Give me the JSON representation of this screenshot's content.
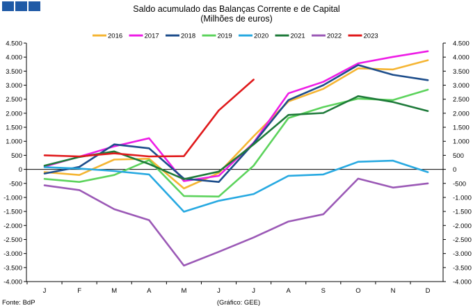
{
  "header": {
    "logo_colors": [
      "#1f5aa6",
      "#1f5aa6",
      "#1f5aa6"
    ]
  },
  "chart_data": {
    "type": "line",
    "title": "Saldo acumulado das Balanças Corrente e de Capital",
    "subtitle": "(Milhões de euros)",
    "categories": [
      "J",
      "F",
      "M",
      "A",
      "M",
      "J",
      "J",
      "A",
      "S",
      "O",
      "N",
      "D"
    ],
    "ylim": [
      -4000,
      4500
    ],
    "yticks": [
      4500,
      4000,
      3500,
      3000,
      2500,
      2000,
      1500,
      1000,
      500,
      0,
      -500,
      -1000,
      -1500,
      -2000,
      -2500,
      -3000,
      -3500,
      -4000
    ],
    "ytick_labels": [
      "4.500",
      "4.000",
      "3.500",
      "3.000",
      "2.500",
      "2.000",
      "1.500",
      "1.000",
      "500",
      "0",
      "-500",
      "-1.000",
      "-1.500",
      "-2.000",
      "-2.500",
      "-3.000",
      "-3.500",
      "-4.000"
    ],
    "legend_position": "top",
    "grid": false,
    "secondary_y_axis": true,
    "series": [
      {
        "name": "2016",
        "color": "#f5b533",
        "values": [
          -100,
          -200,
          350,
          380,
          -680,
          -130,
          1180,
          2420,
          2870,
          3600,
          3560,
          3890
        ]
      },
      {
        "name": "2017",
        "color": "#ee1de6",
        "values": [
          100,
          450,
          820,
          1110,
          -420,
          -230,
          950,
          2710,
          3120,
          3780,
          4010,
          4210
        ]
      },
      {
        "name": "2018",
        "color": "#1d4d8b",
        "values": [
          -150,
          90,
          890,
          750,
          -330,
          -450,
          930,
          2470,
          3000,
          3720,
          3370,
          3180
        ]
      },
      {
        "name": "2019",
        "color": "#5cd35c",
        "values": [
          -340,
          -450,
          -200,
          330,
          -950,
          -970,
          130,
          1830,
          2220,
          2520,
          2470,
          2840
        ]
      },
      {
        "name": "2020",
        "color": "#27a9e1",
        "values": [
          80,
          30,
          -60,
          -180,
          -1510,
          -1120,
          -880,
          -230,
          -180,
          270,
          310,
          -100
        ]
      },
      {
        "name": "2021",
        "color": "#1e7a3a",
        "values": [
          130,
          440,
          640,
          190,
          -350,
          -80,
          890,
          1940,
          2010,
          2610,
          2400,
          2080
        ]
      },
      {
        "name": "2022",
        "color": "#9b59b6",
        "values": [
          -570,
          -740,
          -1420,
          -1810,
          -3430,
          -2940,
          -2430,
          -1860,
          -1600,
          -330,
          -650,
          -500
        ]
      },
      {
        "name": "2023",
        "color": "#e0191b",
        "values": [
          500,
          460,
          570,
          460,
          470,
          2100,
          3200,
          null,
          null,
          null,
          null,
          null
        ]
      }
    ]
  },
  "footer": {
    "source": "Fonte: BdP",
    "credit": "(Gráfico: GEE)"
  }
}
